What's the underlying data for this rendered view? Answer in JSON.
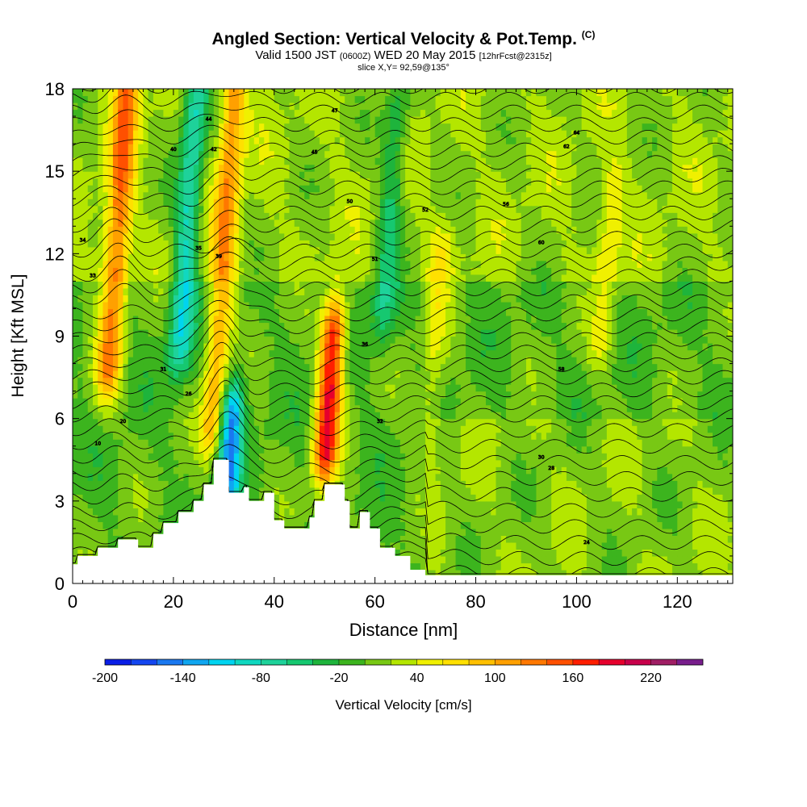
{
  "header": {
    "title": "Angled Section: Vertical Velocity & Pot.Temp.",
    "title_tag": "(C)",
    "valid_prefix": "Valid 1500 JST",
    "utc": "(0600Z)",
    "date": "WED 20 May 2015",
    "forecast": "[12hrFcst@2315z]",
    "slice": "slice X,Y= 92,59@135°"
  },
  "chart_data": {
    "type": "heatmap",
    "title": "Angled Section: Vertical Velocity & Pot.Temp.",
    "xlabel": "Distance [nm]",
    "ylabel": "Height [Kft MSL]",
    "xlim": [
      0,
      131
    ],
    "ylim": [
      0,
      18
    ],
    "x_ticks": [
      0,
      20,
      40,
      60,
      80,
      100,
      120
    ],
    "y_ticks": [
      0,
      3,
      6,
      9,
      12,
      15,
      18
    ],
    "colorbar": {
      "label": "Vertical Velocity [cm/s]",
      "min": -200,
      "max": 250,
      "step": 20,
      "tick_values": [
        -200,
        -140,
        -80,
        -20,
        40,
        100,
        160,
        220
      ],
      "colors": [
        "#0a1ee6",
        "#1446f0",
        "#1a78f0",
        "#10a6f0",
        "#00d4f0",
        "#10d8c0",
        "#1ed29a",
        "#16c870",
        "#1eb43c",
        "#3cb41e",
        "#78c814",
        "#b4e600",
        "#f0f000",
        "#ffe000",
        "#ffc000",
        "#ffa000",
        "#ff7800",
        "#ff5000",
        "#ff1e00",
        "#e6002d",
        "#c8004b",
        "#a01e64",
        "#781e8c"
      ]
    },
    "updrafts": [
      {
        "x": 9,
        "ymin": 8,
        "ymax": 18,
        "w": 120
      },
      {
        "x": 30,
        "ymin": 6,
        "ymax": 18,
        "w": 100
      },
      {
        "x": 51,
        "ymin": 5,
        "ymax": 9,
        "w": 180
      },
      {
        "x": 72,
        "ymin": 6,
        "ymax": 12,
        "w": 40
      },
      {
        "x": 106,
        "ymin": 9,
        "ymax": 14,
        "w": 40
      }
    ],
    "downdrafts": [
      {
        "x": 23,
        "ymin": 9,
        "ymax": 18,
        "w": -100
      },
      {
        "x": 31,
        "ymin": 3,
        "ymax": 6,
        "w": -140
      },
      {
        "x": 63,
        "ymin": 10,
        "ymax": 17,
        "w": -60
      }
    ],
    "terrain": [
      [
        0,
        0.7
      ],
      [
        1,
        1
      ],
      [
        5,
        1.3
      ],
      [
        9,
        1.6
      ],
      [
        13,
        1.3
      ],
      [
        16,
        1.8
      ],
      [
        18,
        2.2
      ],
      [
        21,
        2.6
      ],
      [
        24,
        3.0
      ],
      [
        26,
        3.6
      ],
      [
        28,
        4.5
      ],
      [
        30,
        4.5
      ],
      [
        31,
        3.3
      ],
      [
        34,
        3.5
      ],
      [
        35,
        3.0
      ],
      [
        38,
        3.3
      ],
      [
        40,
        2.3
      ],
      [
        42,
        2.0
      ],
      [
        45,
        2.0
      ],
      [
        47,
        2.4
      ],
      [
        48,
        3.0
      ],
      [
        50,
        3.6
      ],
      [
        52,
        3.6
      ],
      [
        54,
        3.0
      ],
      [
        55,
        2.0
      ],
      [
        57,
        2.6
      ],
      [
        59,
        2.0
      ],
      [
        61,
        1.3
      ],
      [
        64,
        1.0
      ],
      [
        67,
        0.5
      ],
      [
        70,
        0.3
      ],
      [
        75,
        0.3
      ],
      [
        131,
        0.3
      ]
    ],
    "isentropes": {
      "count": 40,
      "labels": [
        {
          "text": "10",
          "x": 5,
          "y": 5.1
        },
        {
          "text": "20",
          "x": 10,
          "y": 5.9
        },
        {
          "text": "26",
          "x": 23,
          "y": 6.9
        },
        {
          "text": "31",
          "x": 18,
          "y": 7.8
        },
        {
          "text": "33",
          "x": 4,
          "y": 11.2
        },
        {
          "text": "34",
          "x": 2,
          "y": 12.5
        },
        {
          "text": "35",
          "x": 25,
          "y": 12.2
        },
        {
          "text": "39",
          "x": 29,
          "y": 11.9
        },
        {
          "text": "40",
          "x": 20,
          "y": 15.8
        },
        {
          "text": "42",
          "x": 28,
          "y": 15.8
        },
        {
          "text": "44",
          "x": 27,
          "y": 16.9
        },
        {
          "text": "45",
          "x": 48,
          "y": 15.7
        },
        {
          "text": "47",
          "x": 52,
          "y": 17.2
        },
        {
          "text": "50",
          "x": 55,
          "y": 13.9
        },
        {
          "text": "51",
          "x": 60,
          "y": 11.8
        },
        {
          "text": "52",
          "x": 70,
          "y": 13.6
        },
        {
          "text": "56",
          "x": 86,
          "y": 13.8
        },
        {
          "text": "60",
          "x": 93,
          "y": 12.4
        },
        {
          "text": "62",
          "x": 98,
          "y": 15.9
        },
        {
          "text": "64",
          "x": 100,
          "y": 16.4
        },
        {
          "text": "58",
          "x": 97,
          "y": 7.8
        },
        {
          "text": "36",
          "x": 58,
          "y": 8.7
        },
        {
          "text": "30",
          "x": 93,
          "y": 4.6
        },
        {
          "text": "28",
          "x": 95,
          "y": 4.2
        },
        {
          "text": "24",
          "x": 102,
          "y": 1.5
        },
        {
          "text": "32",
          "x": 61,
          "y": 5.9
        }
      ]
    }
  }
}
